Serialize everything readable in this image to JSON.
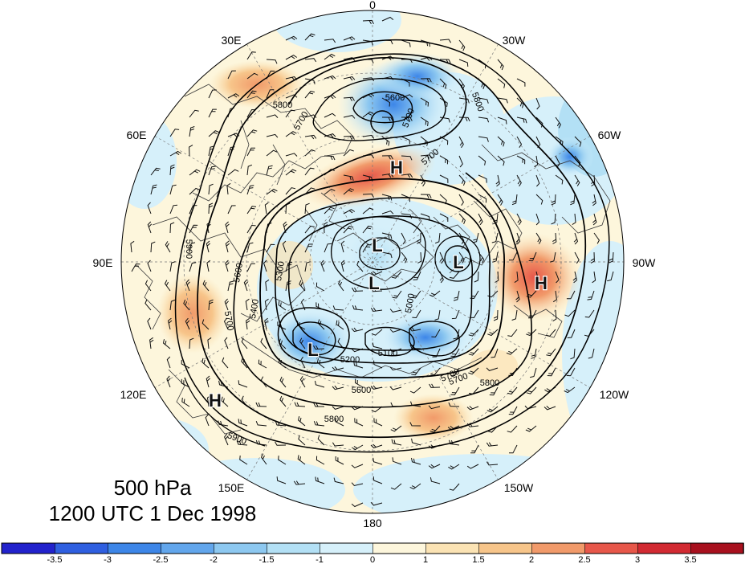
{
  "map": {
    "projection": "polar stereographic, Northern Hemisphere",
    "longitude_labels": {
      "top": "0",
      "upper_right": "30W",
      "right_upper": "60W",
      "right": "90W",
      "right_lower": "120W",
      "lower_right": "150W",
      "bottom": "180",
      "lower_left": "150E",
      "left_lower": "120E",
      "left": "90E",
      "left_upper": "60E",
      "upper_left": "30E"
    },
    "centers": [
      {
        "id": "high-north",
        "label": "H"
      },
      {
        "id": "high-east",
        "label": "H"
      },
      {
        "id": "high-west",
        "label": "H"
      },
      {
        "id": "low-pole-a",
        "label": "L"
      },
      {
        "id": "low-pole-b",
        "label": "L"
      },
      {
        "id": "low-canada",
        "label": "L"
      },
      {
        "id": "low-siberia",
        "label": "L"
      }
    ],
    "contour_labels": [
      {
        "id": "c5600-north",
        "label": "5600"
      },
      {
        "id": "c5700-north",
        "label": "5700"
      },
      {
        "id": "c5700-northeast",
        "label": "5700"
      },
      {
        "id": "c5800-north",
        "label": "5800"
      },
      {
        "id": "c5800-northeast",
        "label": "5800"
      },
      {
        "id": "c5700-mid",
        "label": "5700"
      },
      {
        "id": "c5700-east",
        "label": "5700"
      },
      {
        "id": "c5600-west",
        "label": "5600"
      },
      {
        "id": "c5900-west",
        "label": "5900"
      },
      {
        "id": "c5300-west",
        "label": "5300"
      },
      {
        "id": "c5400-west",
        "label": "5400"
      },
      {
        "id": "c5700-sw",
        "label": "5700"
      },
      {
        "id": "c5200-south",
        "label": "5200"
      },
      {
        "id": "c5100-south",
        "label": "5100"
      },
      {
        "id": "c5600-south",
        "label": "5600"
      },
      {
        "id": "c5800-south",
        "label": "5800"
      },
      {
        "id": "c5700-se",
        "label": "5700"
      },
      {
        "id": "c5800-se",
        "label": "5800"
      },
      {
        "id": "c5900-sw",
        "label": "5900"
      },
      {
        "id": "c5000-pole",
        "label": "5000"
      }
    ],
    "colors": {
      "land_lines": "#3a3a3a",
      "contour": "#000000",
      "grid": "#777777"
    }
  },
  "caption": {
    "level": "500 hPa",
    "time": "1200 UTC 1 Dec 1998"
  },
  "colorbar": {
    "ticks": [
      "-3.5",
      "-3",
      "-2.5",
      "-2",
      "-1.5",
      "-1",
      "0",
      "1",
      "1.5",
      "2",
      "2.5",
      "3",
      "3.5"
    ],
    "colors": [
      "#2222cc",
      "#2f5fe0",
      "#3d86e8",
      "#62a6ec",
      "#8dc8f0",
      "#b3e0f5",
      "#d6f0fa",
      "#fdf6dc",
      "#fbe3b4",
      "#f7c58a",
      "#f19a6a",
      "#e7574a",
      "#d22a32",
      "#a8101e"
    ]
  }
}
